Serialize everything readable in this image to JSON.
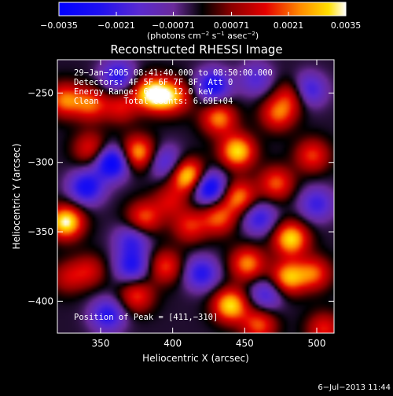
{
  "chart_data": {
    "type": "heatmap",
    "title": "Reconstructed RHESSI Image",
    "xlabel": "Heliocentric X (arcsec)",
    "ylabel": "Heliocentric Y (arcsec)",
    "xlim": [
      320,
      512
    ],
    "ylim": [
      -423,
      -226
    ],
    "x_ticks": [
      350,
      400,
      450,
      500
    ],
    "y_ticks": [
      -250,
      -300,
      -350,
      -400
    ],
    "x_tick_labels": [
      "350",
      "400",
      "450",
      "500"
    ],
    "y_tick_labels": [
      "−250",
      "−300",
      "−350",
      "−400"
    ],
    "colorbar": {
      "min": -0.0035,
      "max": 0.0035,
      "ticks": [
        -0.0035,
        -0.0021,
        -0.00071,
        0.00071,
        0.0021,
        0.0035
      ],
      "tick_labels": [
        "−0.0035",
        "−0.0021",
        "−0.00071",
        "0.00071",
        "0.0021",
        "0.0035"
      ],
      "label_pre": "(photons cm",
      "label_exp1": "−2",
      "label_mid1": " s",
      "label_exp2": "−1",
      "label_mid2": " asec",
      "label_exp3": "−2",
      "label_post": ")"
    },
    "annotations": [
      "29−Jan−2005 08:41:40.000 to 08:50:00.000",
      "Detectors: 4F 5F 6F 7F 8F, Att 0",
      "Energy Range: 6.0 − 12.0 keV",
      "Clean     Total counts: 6.69E+04"
    ],
    "peak_label": "Position of Peak = [411,−310]",
    "peak": [
      411,
      -310
    ],
    "sources": [
      {
        "x": 326,
        "y": -343,
        "amp": 1.0
      },
      {
        "x": 325,
        "y": -255,
        "amp": 0.65
      },
      {
        "x": 343,
        "y": -258,
        "amp": 0.6
      },
      {
        "x": 343,
        "y": -290,
        "amp": 0.5
      },
      {
        "x": 342,
        "y": -378,
        "amp": 0.4
      },
      {
        "x": 327,
        "y": -383,
        "amp": 0.35
      },
      {
        "x": 364,
        "y": -260,
        "amp": 0.45
      },
      {
        "x": 383,
        "y": -250,
        "amp": 0.7
      },
      {
        "x": 393,
        "y": -252,
        "amp": 0.7
      },
      {
        "x": 376,
        "y": -293,
        "amp": 0.8
      },
      {
        "x": 380,
        "y": -340,
        "amp": 0.6
      },
      {
        "x": 395,
        "y": -375,
        "amp": 0.55
      },
      {
        "x": 375,
        "y": -396,
        "amp": 0.55
      },
      {
        "x": 411,
        "y": -310,
        "amp": 1.0
      },
      {
        "x": 412,
        "y": -346,
        "amp": 0.5
      },
      {
        "x": 398,
        "y": -328,
        "amp": 0.4
      },
      {
        "x": 404,
        "y": -253,
        "amp": 0.4
      },
      {
        "x": 432,
        "y": -268,
        "amp": 0.7
      },
      {
        "x": 445,
        "y": -292,
        "amp": 0.9
      },
      {
        "x": 446,
        "y": -325,
        "amp": 0.7
      },
      {
        "x": 432,
        "y": -340,
        "amp": 0.6
      },
      {
        "x": 452,
        "y": -373,
        "amp": 0.7
      },
      {
        "x": 440,
        "y": -403,
        "amp": 0.9
      },
      {
        "x": 472,
        "y": -315,
        "amp": 0.6
      },
      {
        "x": 482,
        "y": -355,
        "amp": 0.9
      },
      {
        "x": 480,
        "y": -383,
        "amp": 0.8
      },
      {
        "x": 498,
        "y": -380,
        "amp": 0.6
      },
      {
        "x": 473,
        "y": -265,
        "amp": 0.6
      },
      {
        "x": 483,
        "y": -252,
        "amp": 0.5
      },
      {
        "x": 497,
        "y": -295,
        "amp": 0.55
      },
      {
        "x": 460,
        "y": -417,
        "amp": 0.6
      },
      {
        "x": 505,
        "y": -420,
        "amp": 0.5
      },
      {
        "x": 372,
        "y": -375,
        "amp": -0.6
      },
      {
        "x": 372,
        "y": -356,
        "amp": -0.5
      },
      {
        "x": 340,
        "y": -318,
        "amp": -0.7
      },
      {
        "x": 358,
        "y": -300,
        "amp": -0.9
      },
      {
        "x": 362,
        "y": -238,
        "amp": -0.6
      },
      {
        "x": 425,
        "y": -318,
        "amp": -0.9
      },
      {
        "x": 428,
        "y": -245,
        "amp": -0.7
      },
      {
        "x": 395,
        "y": -300,
        "amp": -0.5
      },
      {
        "x": 460,
        "y": -340,
        "amp": -0.55
      },
      {
        "x": 465,
        "y": -395,
        "amp": -0.5
      },
      {
        "x": 494,
        "y": -248,
        "amp": -0.6
      },
      {
        "x": 355,
        "y": -410,
        "amp": -0.6
      },
      {
        "x": 420,
        "y": -380,
        "amp": -0.6
      },
      {
        "x": 500,
        "y": -330,
        "amp": -0.5
      },
      {
        "x": 458,
        "y": -240,
        "amp": -0.4
      }
    ]
  },
  "footer": {
    "timestamp": "6−Jul−2013 11:44"
  }
}
